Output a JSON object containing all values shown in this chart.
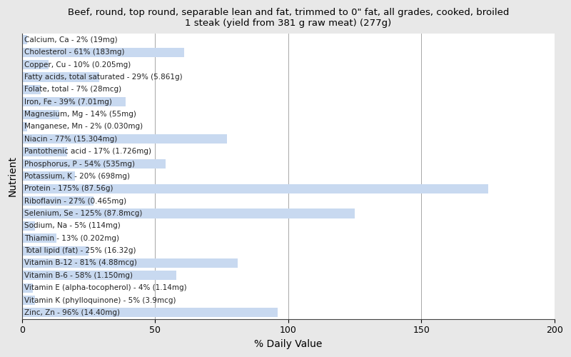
{
  "title": "Beef, round, top round, separable lean and fat, trimmed to 0\" fat, all grades, cooked, broiled\n1 steak (yield from 381 g raw meat) (277g)",
  "xlabel": "% Daily Value",
  "ylabel": "Nutrient",
  "xlim": [
    0,
    200
  ],
  "xticks": [
    0,
    50,
    100,
    150,
    200
  ],
  "bar_color": "#c8d9f0",
  "background_color": "#e8e8e8",
  "plot_bg_color": "#ffffff",
  "title_fontsize": 9.5,
  "label_fontsize": 7.5,
  "bar_height": 0.75,
  "nutrients": [
    {
      "label": "Calcium, Ca - 2% (19mg)",
      "value": 2
    },
    {
      "label": "Cholesterol - 61% (183mg)",
      "value": 61
    },
    {
      "label": "Copper, Cu - 10% (0.205mg)",
      "value": 10
    },
    {
      "label": "Fatty acids, total saturated - 29% (5.861g)",
      "value": 29
    },
    {
      "label": "Folate, total - 7% (28mcg)",
      "value": 7
    },
    {
      "label": "Iron, Fe - 39% (7.01mg)",
      "value": 39
    },
    {
      "label": "Magnesium, Mg - 14% (55mg)",
      "value": 14
    },
    {
      "label": "Manganese, Mn - 2% (0.030mg)",
      "value": 2
    },
    {
      "label": "Niacin - 77% (15.304mg)",
      "value": 77
    },
    {
      "label": "Pantothenic acid - 17% (1.726mg)",
      "value": 17
    },
    {
      "label": "Phosphorus, P - 54% (535mg)",
      "value": 54
    },
    {
      "label": "Potassium, K - 20% (698mg)",
      "value": 20
    },
    {
      "label": "Protein - 175% (87.56g)",
      "value": 175
    },
    {
      "label": "Riboflavin - 27% (0.465mg)",
      "value": 27
    },
    {
      "label": "Selenium, Se - 125% (87.8mcg)",
      "value": 125
    },
    {
      "label": "Sodium, Na - 5% (114mg)",
      "value": 5
    },
    {
      "label": "Thiamin - 13% (0.202mg)",
      "value": 13
    },
    {
      "label": "Total lipid (fat) - 25% (16.32g)",
      "value": 25
    },
    {
      "label": "Vitamin B-12 - 81% (4.88mcg)",
      "value": 81
    },
    {
      "label": "Vitamin B-6 - 58% (1.150mg)",
      "value": 58
    },
    {
      "label": "Vitamin E (alpha-tocopherol) - 4% (1.14mg)",
      "value": 4
    },
    {
      "label": "Vitamin K (phylloquinone) - 5% (3.9mcg)",
      "value": 5
    },
    {
      "label": "Zinc, Zn - 96% (14.40mg)",
      "value": 96
    }
  ]
}
